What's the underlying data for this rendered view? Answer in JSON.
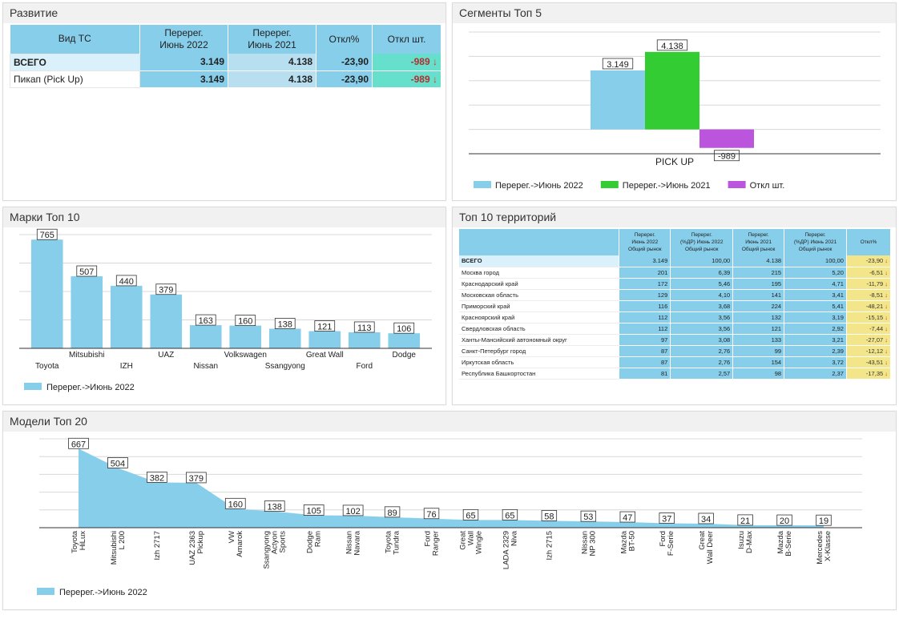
{
  "panels": {
    "p1": {
      "title": "Развитие"
    },
    "p2": {
      "title": "Сегменты Топ 5"
    },
    "p3": {
      "title": "Марки Топ 10"
    },
    "p4": {
      "title": "Топ 10 территорий"
    },
    "p5": {
      "title": "Модели Топ 20"
    }
  },
  "colors": {
    "series_2022": "#87ceeb",
    "series_2021": "#33cc33",
    "delta": "#bb55dd",
    "table_head": "#87ceeb",
    "delta_cell": "#66e0cc",
    "delta_cell_territory": "#f3e58a",
    "arrow": "#d23a1a"
  },
  "dev_table": {
    "headers": [
      "Вид ТС",
      "Перерег.\nИюнь 2022",
      "Перерег.\nИюнь 2021",
      "Откл%",
      "Откл шт."
    ],
    "rows": [
      {
        "name": "ВСЕГО",
        "v2022": "3.149",
        "v2021": "4.138",
        "pct": "-23,90",
        "diff": "-989",
        "total": true
      },
      {
        "name": "Пикап (Pick Up)",
        "v2022": "3.149",
        "v2021": "4.138",
        "pct": "-23,90",
        "diff": "-989",
        "total": false
      }
    ],
    "arrow_icon": "arrow-down-icon"
  },
  "chart_data": [
    {
      "type": "bar",
      "title": "Сегменты Топ 5",
      "categories": [
        "PICK UP"
      ],
      "series": [
        {
          "name": "Перерег.->Июнь 2022",
          "values": [
            3149
          ],
          "labels": [
            "3.149"
          ]
        },
        {
          "name": "Перерег.->Июнь 2021",
          "values": [
            4138
          ],
          "labels": [
            "4.138"
          ]
        },
        {
          "name": "Откл шт.",
          "values": [
            -989
          ],
          "labels": [
            "-989"
          ]
        }
      ],
      "ylim": [
        -1300,
        5200
      ],
      "grid": true,
      "legend": "bottom"
    },
    {
      "type": "bar",
      "title": "Марки Топ 10",
      "categories": [
        "Toyota",
        "Mitsubishi",
        "IZH",
        "UAZ",
        "Nissan",
        "Volkswagen",
        "Ssangyong",
        "Great Wall",
        "Ford",
        "Dodge"
      ],
      "series": [
        {
          "name": "Перерег.->Июнь 2022",
          "values": [
            765,
            507,
            440,
            379,
            163,
            160,
            138,
            121,
            113,
            106
          ]
        }
      ],
      "ylim": [
        0,
        800
      ],
      "grid": true,
      "legend": "bottom-left"
    },
    {
      "type": "area",
      "title": "Модели Топ 20",
      "categories": [
        "Toyota\nHiLux",
        "Mitsubishi\nL 200",
        "Izh 2717",
        "UAZ 2363\nPickup",
        "VW\nAmarok",
        "Ssangyong\nActyon\nSports",
        "Dodge\nRam",
        "Nissan\nNavara",
        "Toyota\nTundra",
        "Ford\nRanger",
        "Great\nWall\nWingle",
        "LADA 2329\nNiva",
        "Izh 2715",
        "Nissan\nNP 300",
        "Mazda\nBT-50",
        "Ford\nF-Serie",
        "Great\nWall Deer",
        "Isuzu\nD-Max",
        "Mazda\nB-Serie",
        "Mercedes\nX-Klasse"
      ],
      "series": [
        {
          "name": "Перерег.->Июнь 2022",
          "values": [
            667,
            504,
            382,
            379,
            160,
            138,
            105,
            102,
            89,
            76,
            65,
            65,
            58,
            53,
            47,
            37,
            34,
            21,
            20,
            19
          ]
        }
      ],
      "ylim": [
        0,
        750
      ],
      "grid": true,
      "legend": "bottom-left"
    }
  ],
  "territory_table": {
    "headers": [
      "",
      "Перерег.\nИюнь 2022\nОбщий рынок",
      "Перерег.\n(%ДР) Июнь 2022\nОбщий рынок",
      "Перерег.\nИюнь 2021\nОбщий рынок",
      "Перерег.\n(%ДР) Июнь 2021\nОбщий рынок",
      "Откл%"
    ],
    "rows": [
      {
        "name": "ВСЕГО",
        "a": "3.149",
        "b": "100,00",
        "c": "4.138",
        "d": "100,00",
        "e": "-23,90",
        "total": true
      },
      {
        "name": "Москва город",
        "a": "201",
        "b": "6,39",
        "c": "215",
        "d": "5,20",
        "e": "-6,51"
      },
      {
        "name": "Краснодарский край",
        "a": "172",
        "b": "5,46",
        "c": "195",
        "d": "4,71",
        "e": "-11,79"
      },
      {
        "name": "Московская область",
        "a": "129",
        "b": "4,10",
        "c": "141",
        "d": "3,41",
        "e": "-8,51"
      },
      {
        "name": "Приморский край",
        "a": "116",
        "b": "3,68",
        "c": "224",
        "d": "5,41",
        "e": "-48,21"
      },
      {
        "name": "Красноярский край",
        "a": "112",
        "b": "3,56",
        "c": "132",
        "d": "3,19",
        "e": "-15,15"
      },
      {
        "name": "Свердловская область",
        "a": "112",
        "b": "3,56",
        "c": "121",
        "d": "2,92",
        "e": "-7,44"
      },
      {
        "name": "Ханты-Мансийский автономный округ",
        "a": "97",
        "b": "3,08",
        "c": "133",
        "d": "3,21",
        "e": "-27,07"
      },
      {
        "name": "Санкт-Петербург город",
        "a": "87",
        "b": "2,76",
        "c": "99",
        "d": "2,39",
        "e": "-12,12"
      },
      {
        "name": "Иркутская область",
        "a": "87",
        "b": "2,76",
        "c": "154",
        "d": "3,72",
        "e": "-43,51"
      },
      {
        "name": "Республика Башкортостан",
        "a": "81",
        "b": "2,57",
        "c": "98",
        "d": "2,37",
        "e": "-17,35"
      }
    ]
  }
}
